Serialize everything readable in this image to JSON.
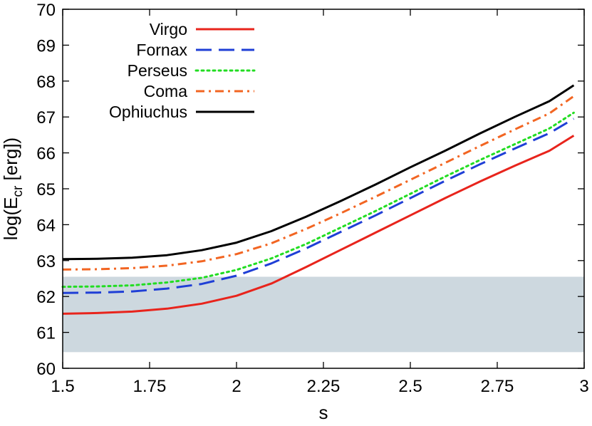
{
  "chart_data": {
    "type": "line",
    "title": "",
    "xlabel": "s",
    "ylabel": {
      "prefix": "log(E",
      "subscript": "cr",
      "suffix": " [erg])"
    },
    "xlim": [
      1.5,
      3.0
    ],
    "ylim": [
      60,
      70
    ],
    "xticks": [
      1.5,
      1.75,
      2,
      2.25,
      2.5,
      2.75,
      3
    ],
    "xtick_labels": [
      "1.5",
      "1.75",
      "2",
      "2.25",
      "2.5",
      "2.75",
      "3"
    ],
    "yticks": [
      60,
      61,
      62,
      63,
      64,
      65,
      66,
      67,
      68,
      69,
      70
    ],
    "ytick_labels": [
      "60",
      "61",
      "62",
      "63",
      "64",
      "65",
      "66",
      "67",
      "68",
      "69",
      "70"
    ],
    "shaded_band": {
      "y_from": 60.45,
      "y_to": 62.55,
      "color": "#cdd8df"
    },
    "legend_position": "top-left",
    "x": [
      1.5,
      1.6,
      1.7,
      1.8,
      1.9,
      2.0,
      2.1,
      2.2,
      2.3,
      2.4,
      2.5,
      2.6,
      2.7,
      2.8,
      2.9,
      2.97
    ],
    "series": [
      {
        "name": "Virgo",
        "color": "#e8241c",
        "dash": "solid",
        "values": [
          61.52,
          61.54,
          61.58,
          61.66,
          61.8,
          62.02,
          62.36,
          62.82,
          63.3,
          63.78,
          64.26,
          64.74,
          65.2,
          65.64,
          66.06,
          66.48
        ]
      },
      {
        "name": "Fornax",
        "color": "#1f3fd6",
        "dash": "dashed",
        "values": [
          62.1,
          62.11,
          62.14,
          62.22,
          62.35,
          62.58,
          62.92,
          63.34,
          63.8,
          64.26,
          64.74,
          65.22,
          65.68,
          66.12,
          66.55,
          66.95
        ]
      },
      {
        "name": "Perseus",
        "color": "#22dd22",
        "dash": "dotted",
        "values": [
          62.27,
          62.28,
          62.31,
          62.39,
          62.52,
          62.74,
          63.06,
          63.46,
          63.92,
          64.38,
          64.86,
          65.34,
          65.8,
          66.24,
          66.68,
          67.12
        ]
      },
      {
        "name": "Coma",
        "color": "#f26522",
        "dash": "dashdot",
        "values": [
          62.75,
          62.76,
          62.79,
          62.86,
          62.98,
          63.18,
          63.48,
          63.88,
          64.32,
          64.78,
          65.25,
          65.72,
          66.19,
          66.65,
          67.1,
          67.58
        ]
      },
      {
        "name": "Ophiuchus",
        "color": "#000000",
        "dash": "solid",
        "values": [
          63.04,
          63.05,
          63.08,
          63.15,
          63.29,
          63.5,
          63.82,
          64.22,
          64.66,
          65.12,
          65.6,
          66.06,
          66.54,
          67.0,
          67.44,
          67.88
        ]
      }
    ]
  }
}
